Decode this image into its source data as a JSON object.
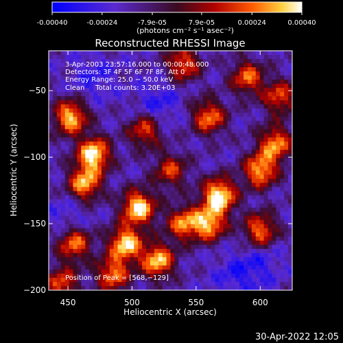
{
  "colorbar": {
    "tick_labels": [
      "-0.00040",
      "-0.00024",
      "-7.9e-05",
      "7.9e-05",
      "0.00024",
      "0.00040"
    ],
    "tick_values": [
      -0.0004,
      -0.00024,
      -7.9e-05,
      7.9e-05,
      0.00024,
      0.0004
    ],
    "range": [
      -0.0004,
      0.0004
    ],
    "units_label": "(photons cm⁻² s⁻¹ asec⁻²)",
    "stops": [
      {
        "pos": 0.0,
        "color": "#0000ff"
      },
      {
        "pos": 0.25,
        "color": "#5a2ad0"
      },
      {
        "pos": 0.5,
        "color": "#3a0a20"
      },
      {
        "pos": 0.65,
        "color": "#b00000"
      },
      {
        "pos": 0.8,
        "color": "#ff5a00"
      },
      {
        "pos": 0.92,
        "color": "#ffd040"
      },
      {
        "pos": 1.0,
        "color": "#ffffff"
      }
    ]
  },
  "chart_data": {
    "type": "heatmap",
    "title": "Reconstructed RHESSI Image",
    "xlabel": "Heliocentric X (arcsec)",
    "ylabel": "Heliocentric Y (arcsec)",
    "xlim": [
      435,
      625
    ],
    "ylim": [
      -200,
      -20
    ],
    "x_ticks": [
      450,
      500,
      550,
      600
    ],
    "y_ticks": [
      -50,
      -100,
      -150,
      -200
    ],
    "x_tick_labels": [
      "450",
      "500",
      "550",
      "600"
    ],
    "y_tick_labels": [
      "−50",
      "−100",
      "−150",
      "−200"
    ],
    "grid": false,
    "annotations": [
      "3-Apr-2003 23:57:16.000 to 00:00:48.000",
      "Detectors: 3F 4F 5F 6F 7F 8F, Att 0",
      "Energy Range: 25.0 − 50.0 keV",
      "Clean     Total counts: 3.20E+03"
    ],
    "peak_label": "Position of Peak = [568,−129]",
    "peak": [
      568,
      -129
    ],
    "bright_sources": [
      {
        "x": 452,
        "y": -70,
        "level": 0.85
      },
      {
        "x": 470,
        "y": -98,
        "level": 0.95
      },
      {
        "x": 463,
        "y": -120,
        "level": 0.8
      },
      {
        "x": 505,
        "y": -138,
        "level": 0.95
      },
      {
        "x": 495,
        "y": -165,
        "level": 0.9
      },
      {
        "x": 520,
        "y": -178,
        "level": 0.85
      },
      {
        "x": 485,
        "y": -188,
        "level": 0.7
      },
      {
        "x": 540,
        "y": -150,
        "level": 0.7
      },
      {
        "x": 568,
        "y": -129,
        "level": 1.0
      },
      {
        "x": 560,
        "y": -150,
        "level": 0.8
      },
      {
        "x": 600,
        "y": -110,
        "level": 0.8
      },
      {
        "x": 612,
        "y": -90,
        "level": 0.75
      },
      {
        "x": 600,
        "y": -155,
        "level": 0.7
      },
      {
        "x": 590,
        "y": -40,
        "level": 0.65
      },
      {
        "x": 560,
        "y": -70,
        "level": 0.7
      },
      {
        "x": 615,
        "y": -55,
        "level": 0.6
      },
      {
        "x": 510,
        "y": -80,
        "level": 0.6
      },
      {
        "x": 540,
        "y": -30,
        "level": 0.65
      },
      {
        "x": 455,
        "y": -165,
        "level": 0.7
      },
      {
        "x": 445,
        "y": -195,
        "level": 0.6
      },
      {
        "x": 530,
        "y": -110,
        "level": 0.55
      }
    ],
    "dark_regions": [
      {
        "x": 520,
        "y": -60,
        "level": 0.7
      },
      {
        "x": 470,
        "y": -40,
        "level": 0.6
      },
      {
        "x": 580,
        "y": -190,
        "level": 0.6
      },
      {
        "x": 450,
        "y": -145,
        "level": 0.5
      },
      {
        "x": 600,
        "y": -180,
        "level": 0.6
      }
    ]
  },
  "footer": {
    "timestamp": "30-Apr-2022 12:05"
  }
}
